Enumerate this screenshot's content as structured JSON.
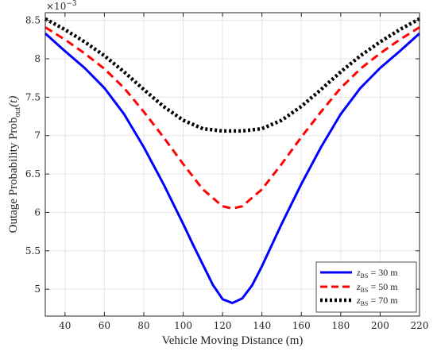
{
  "chart_data": {
    "type": "line",
    "xlabel": "Vehicle Moving Distance (m)",
    "ylabel_main": "Outage Probability Prob",
    "ylabel_sub": "out",
    "ylabel_tail": "(t)",
    "y_exponent_base": "×10",
    "y_exponent_power": "−3",
    "xlim": [
      30,
      220
    ],
    "ylim": [
      4.65,
      8.6
    ],
    "x_ticks": [
      40,
      60,
      80,
      100,
      120,
      140,
      160,
      180,
      200,
      220
    ],
    "y_ticks": [
      5,
      5.5,
      6,
      6.5,
      7,
      7.5,
      8,
      8.5
    ],
    "grid": true,
    "legend_position": "bottom-right",
    "series": [
      {
        "name_var": "z",
        "name_sub": "BS",
        "name_rest": " = 30 m",
        "color": "#0000ff",
        "style": "solid",
        "x": [
          30,
          40,
          50,
          60,
          70,
          80,
          90,
          100,
          105,
          110,
          115,
          120,
          125,
          130,
          135,
          140,
          150,
          160,
          170,
          180,
          190,
          200,
          210,
          220
        ],
        "y": [
          8.33,
          8.1,
          7.88,
          7.62,
          7.28,
          6.85,
          6.37,
          5.85,
          5.58,
          5.32,
          5.06,
          4.87,
          4.82,
          4.88,
          5.05,
          5.3,
          5.85,
          6.37,
          6.85,
          7.28,
          7.62,
          7.88,
          8.1,
          8.33
        ]
      },
      {
        "name_var": "z",
        "name_sub": "BS",
        "name_rest": " = 50 m",
        "color": "#ff0000",
        "style": "dashed",
        "x": [
          30,
          40,
          50,
          60,
          70,
          80,
          90,
          100,
          110,
          120,
          125,
          130,
          140,
          150,
          160,
          170,
          180,
          190,
          200,
          210,
          220
        ],
        "y": [
          8.41,
          8.25,
          8.07,
          7.87,
          7.62,
          7.31,
          6.98,
          6.63,
          6.3,
          6.08,
          6.05,
          6.08,
          6.3,
          6.63,
          6.98,
          7.31,
          7.62,
          7.87,
          8.07,
          8.25,
          8.41
        ]
      },
      {
        "name_var": "z",
        "name_sub": "BS",
        "name_rest": " = 70 m",
        "color": "#000000",
        "style": "dotted",
        "x": [
          30,
          40,
          50,
          60,
          70,
          80,
          90,
          100,
          110,
          120,
          125,
          130,
          140,
          150,
          160,
          170,
          180,
          190,
          200,
          210,
          220
        ],
        "y": [
          8.52,
          8.38,
          8.22,
          8.04,
          7.83,
          7.6,
          7.38,
          7.2,
          7.09,
          7.06,
          7.06,
          7.06,
          7.09,
          7.2,
          7.38,
          7.6,
          7.83,
          8.04,
          8.22,
          8.38,
          8.52
        ]
      }
    ]
  }
}
